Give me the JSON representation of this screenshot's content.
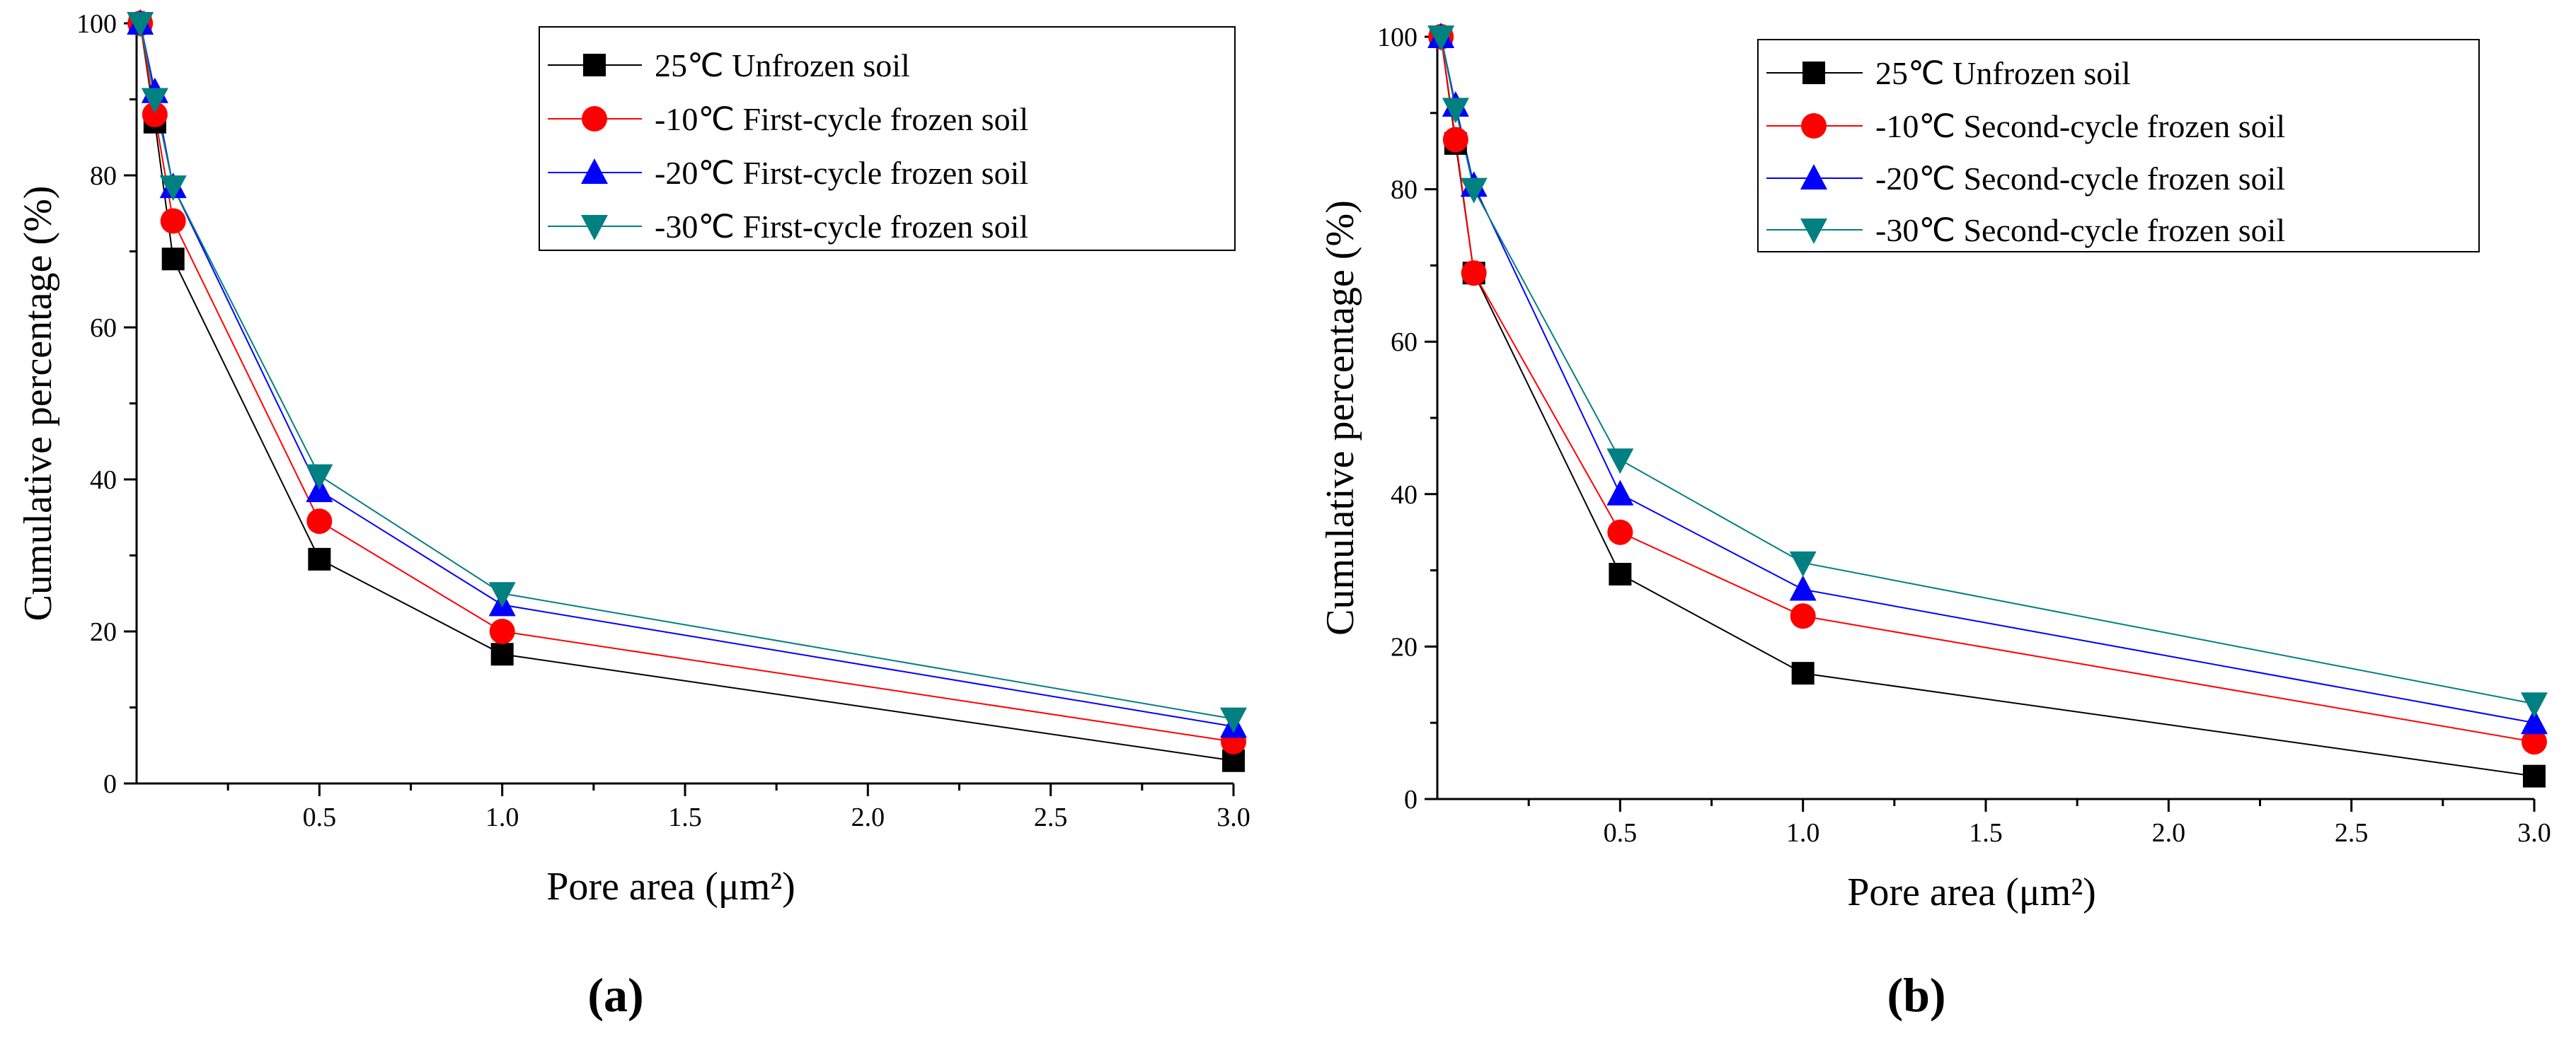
{
  "chart_data": [
    {
      "type": "line",
      "panel": "a",
      "xlabel": "Pore area (μm²)",
      "ylabel": "Cumulative percentage (%)",
      "xlim": [
        0,
        3.0
      ],
      "ylim": [
        0,
        100
      ],
      "xticks": [
        0.5,
        1.0,
        1.5,
        2.0,
        2.5,
        3.0
      ],
      "xtick_labels": [
        "0.5",
        "1.0",
        "1.5",
        "2.0",
        "2.5",
        "3.0"
      ],
      "yticks": [
        0,
        20,
        40,
        60,
        80,
        100
      ],
      "ytick_labels": [
        "0",
        "20",
        "40",
        "60",
        "80",
        "100"
      ],
      "x": [
        0.01,
        0.05,
        0.1,
        0.5,
        1.0,
        3.0
      ],
      "series": [
        {
          "name": "25℃ Unfrozen soil",
          "marker": "square",
          "color": "#000000",
          "values": [
            100,
            87,
            69,
            29.5,
            17,
            3
          ]
        },
        {
          "name": "-10℃ First-cycle frozen soil",
          "marker": "circle",
          "color": "#ff0000",
          "values": [
            100,
            88,
            74,
            34.5,
            20,
            5.5
          ]
        },
        {
          "name": "-20℃ First-cycle frozen soil",
          "marker": "triangle-up",
          "color": "#0000ff",
          "values": [
            100,
            91,
            78.5,
            38.5,
            23.5,
            7.5
          ]
        },
        {
          "name": "-30℃ First-cycle frozen soil",
          "marker": "triangle-down",
          "color": "#008080",
          "values": [
            100,
            90,
            78.5,
            40.5,
            25,
            8.5
          ]
        }
      ]
    },
    {
      "type": "line",
      "panel": "b",
      "xlabel": "Pore area (μm²)",
      "ylabel": "Cumulative percentage (%)",
      "xlim": [
        0,
        3.0
      ],
      "ylim": [
        0,
        100
      ],
      "xticks": [
        0.5,
        1.0,
        1.5,
        2.0,
        2.5,
        3.0
      ],
      "xtick_labels": [
        "0.5",
        "1.0",
        "1.5",
        "2.0",
        "2.5",
        "3.0"
      ],
      "yticks": [
        0,
        20,
        40,
        60,
        80,
        100
      ],
      "ytick_labels": [
        "0",
        "20",
        "40",
        "60",
        "80",
        "100"
      ],
      "x": [
        0.01,
        0.05,
        0.1,
        0.5,
        1.0,
        3.0
      ],
      "series": [
        {
          "name": "25℃ Unfrozen soil",
          "marker": "square",
          "color": "#000000",
          "values": [
            100,
            86,
            69,
            29.5,
            16.5,
            3
          ]
        },
        {
          "name": "-10℃ Second-cycle frozen soil",
          "marker": "circle",
          "color": "#ff0000",
          "values": [
            100,
            86.5,
            69,
            35,
            24,
            7.5
          ]
        },
        {
          "name": "-20℃ Second-cycle frozen soil",
          "marker": "triangle-up",
          "color": "#0000ff",
          "values": [
            100,
            91,
            80.5,
            40,
            27.5,
            10
          ]
        },
        {
          "name": "-30℃ Second-cycle frozen soil",
          "marker": "triangle-down",
          "color": "#008080",
          "values": [
            100,
            90.5,
            80,
            44.5,
            31,
            12.5
          ]
        }
      ]
    }
  ],
  "panel_labels": [
    "(a)",
    "(b)"
  ]
}
